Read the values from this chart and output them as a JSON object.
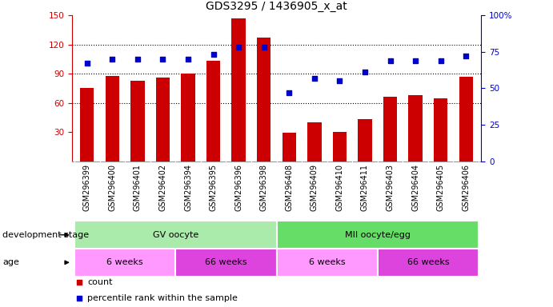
{
  "title": "GDS3295 / 1436905_x_at",
  "samples": [
    "GSM296399",
    "GSM296400",
    "GSM296401",
    "GSM296402",
    "GSM296394",
    "GSM296395",
    "GSM296396",
    "GSM296398",
    "GSM296408",
    "GSM296409",
    "GSM296410",
    "GSM296411",
    "GSM296403",
    "GSM296404",
    "GSM296405",
    "GSM296406"
  ],
  "counts": [
    75,
    88,
    83,
    86,
    90,
    103,
    147,
    127,
    29,
    40,
    30,
    43,
    66,
    68,
    65,
    87
  ],
  "percentiles": [
    67,
    70,
    70,
    70,
    70,
    73,
    78,
    78,
    47,
    57,
    55,
    61,
    69,
    69,
    69,
    72
  ],
  "ylim_left": [
    0,
    150
  ],
  "ylim_right": [
    0,
    100
  ],
  "yticks_left": [
    30,
    60,
    90,
    120,
    150
  ],
  "yticks_right": [
    0,
    25,
    50,
    75,
    100
  ],
  "bar_color": "#cc0000",
  "dot_color": "#0000cc",
  "bg_xtick": "#cccccc",
  "groups_devstage": [
    {
      "label": "GV oocyte",
      "start": 0,
      "end": 8,
      "color": "#aaeaaa"
    },
    {
      "label": "MII oocyte/egg",
      "start": 8,
      "end": 16,
      "color": "#66dd66"
    }
  ],
  "groups_age": [
    {
      "label": "6 weeks",
      "start": 0,
      "end": 4,
      "color": "#ff99ff"
    },
    {
      "label": "66 weeks",
      "start": 4,
      "end": 8,
      "color": "#dd44dd"
    },
    {
      "label": "6 weeks",
      "start": 8,
      "end": 12,
      "color": "#ff99ff"
    },
    {
      "label": "66 weeks",
      "start": 12,
      "end": 16,
      "color": "#dd44dd"
    }
  ],
  "hgrid_ticks": [
    60,
    90,
    120
  ],
  "bar_width": 0.55,
  "dot_size": 18,
  "tick_fontsize": 7.5,
  "label_fontsize": 8,
  "legend_count_color": "#cc0000",
  "legend_dot_color": "#0000cc"
}
